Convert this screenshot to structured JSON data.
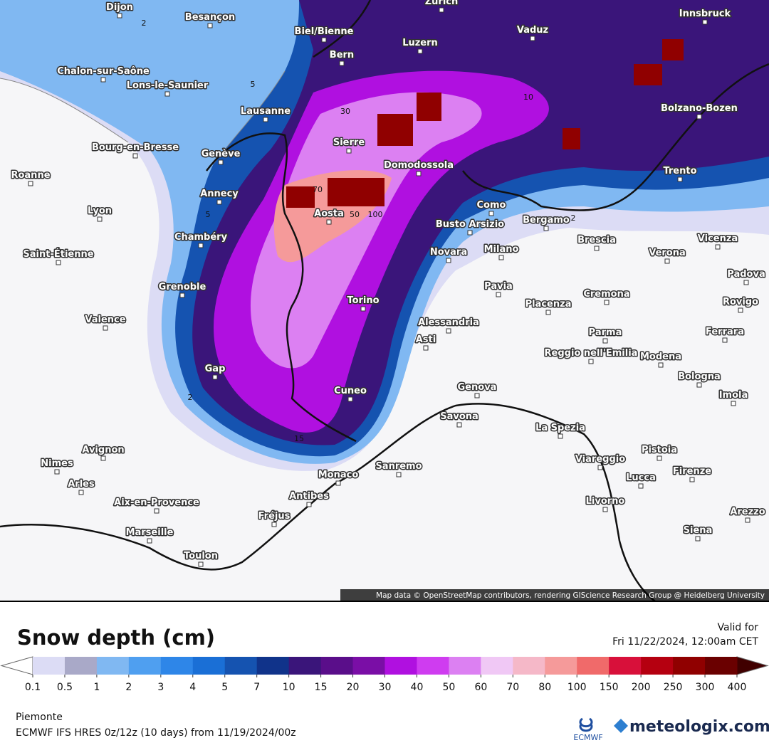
{
  "map": {
    "attribution": "Map data © OpenStreetMap contributors, rendering GIScience Research Group @ Heidelberg University",
    "cities": [
      "Dijon",
      "Besançon",
      "Biel/Bienne",
      "Zurich",
      "Vaduz",
      "Innsbruck",
      "Bern",
      "Luzern",
      "Chalon-sur-Saône",
      "Lons-le-Saunier",
      "Lausanne",
      "Bolzano-Bozen",
      "Sierre",
      "Bourg-en-Bresse",
      "Genève",
      "Domodossola",
      "Trento",
      "Roanne",
      "Annecy",
      "Aosta",
      "Como",
      "Lyon",
      "Busto Arsizio",
      "Bergamo",
      "Chambéry",
      "Brescia",
      "Vicenza",
      "Saint-Étienne",
      "Novara",
      "Milano",
      "Verona",
      "Padova",
      "Grenoble",
      "Pavia",
      "Cremona",
      "Rovigo",
      "Torino",
      "Placenza",
      "Valence",
      "Alessandria",
      "Asti",
      "Ferrara",
      "Parma",
      "Reggio nell'Emilia",
      "Modena",
      "Gap",
      "Bologna",
      "Imola",
      "Cuneo",
      "Genova",
      "Savona",
      "La Spezia",
      "Avignon",
      "Pistoia",
      "Nimes",
      "Viareggio",
      "Sanremo",
      "Monaco",
      "Firenze",
      "Lucca",
      "Arles",
      "Antibes",
      "Aix-en-Provence",
      "Livorno",
      "Fréjus",
      "Arezzo",
      "Marseille",
      "Siena",
      "Toulon"
    ],
    "contour_labels": [
      "2",
      "5",
      "10",
      "30",
      "50",
      "70",
      "100",
      "15",
      "2",
      "5",
      "2"
    ]
  },
  "legend": {
    "title": "Snow depth (cm)",
    "valid_label": "Valid for",
    "valid_time": "Fri 11/22/2024, 12:00am CET",
    "levels": [
      0.1,
      0.5,
      1,
      2,
      3,
      4,
      5,
      7,
      10,
      15,
      20,
      30,
      40,
      50,
      60,
      70,
      80,
      100,
      150,
      200,
      250,
      300,
      400
    ],
    "colors": [
      "#dcdcf5",
      "#a9a9c8",
      "#80b8f2",
      "#4f9ff0",
      "#2e86e8",
      "#1a6fd6",
      "#1553b0",
      "#10338a",
      "#3a157a",
      "#5a0e8a",
      "#7a0ea6",
      "#b010e0",
      "#cf3cf0",
      "#dc80f2",
      "#f0c8f5",
      "#f5b8c8",
      "#f59a9a",
      "#f06a6a",
      "#d8103a",
      "#b50010",
      "#900000",
      "#6a0000"
    ],
    "under_color": "#ffffff",
    "over_color": "#400000"
  },
  "footer": {
    "region": "Piemonte",
    "model": "ECMWF IFS HRES 0z/12z (10 days) from  11/19/2024/00z",
    "ecmwf": "ECMWF",
    "brand": "meteologix.com"
  }
}
